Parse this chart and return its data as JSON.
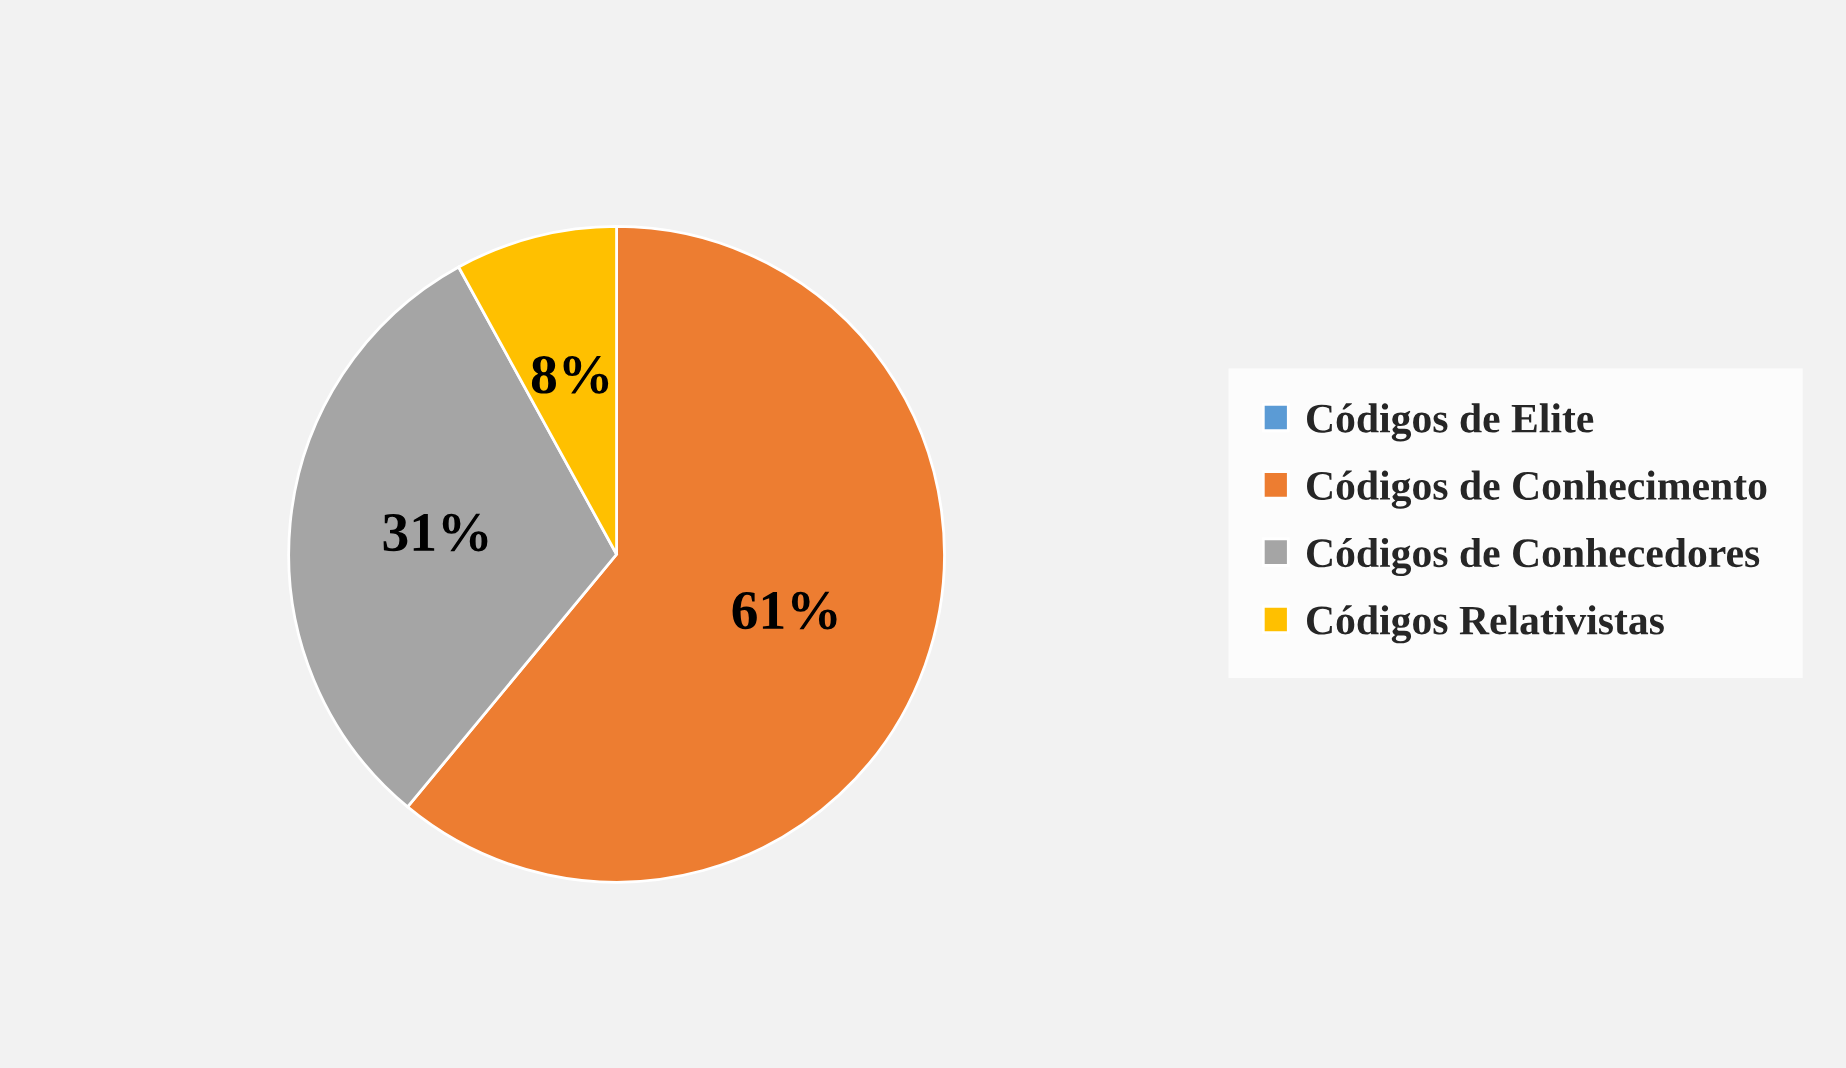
{
  "chart_data": {
    "type": "pie",
    "categories": [
      "Códigos de Elite",
      "Códigos de Conhecimento",
      "Códigos de Conhecedores",
      "Códigos Relativistas"
    ],
    "values": [
      0,
      61,
      31,
      8
    ],
    "colors": [
      "#5b9bd5",
      "#ed7d31",
      "#a5a5a5",
      "#ffc000"
    ],
    "value_labels": [
      null,
      "61%",
      "31%",
      "8%"
    ],
    "legend": "right"
  }
}
